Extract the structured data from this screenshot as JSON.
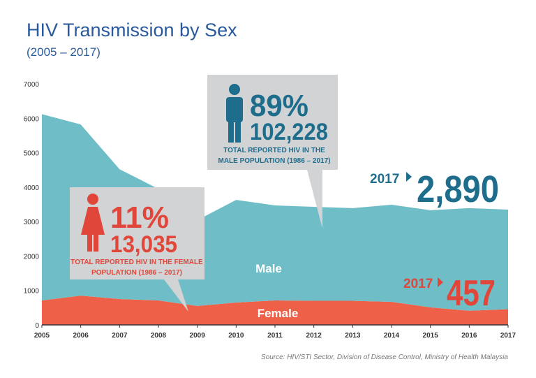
{
  "chart_data": {
    "type": "stacked-area",
    "title": "HIV Transmission by Sex",
    "subtitle": "(2005 – 2017)",
    "x": [
      2005,
      2006,
      2007,
      2008,
      2009,
      2010,
      2011,
      2012,
      2013,
      2014,
      2015,
      2016,
      2017
    ],
    "xlim": [
      2005,
      2017
    ],
    "xticks": [
      2005,
      2006,
      2007,
      2008,
      2009,
      2010,
      2011,
      2012,
      2013,
      2014,
      2015,
      2016,
      2017
    ],
    "ylim": [
      0,
      7000
    ],
    "yticks": [
      0,
      1000,
      2000,
      3000,
      4000,
      5000,
      6000,
      7000
    ],
    "series": [
      {
        "name": "Female",
        "color": "#ee6148",
        "values": [
          710,
          850,
          750,
          710,
          550,
          650,
          710,
          700,
          700,
          670,
          510,
          410,
          457
        ]
      },
      {
        "name": "Male",
        "color": "#6fbdc6",
        "values": [
          5410,
          4970,
          3770,
          3240,
          2490,
          2980,
          2760,
          2730,
          2690,
          2820,
          2820,
          2980,
          2890
        ]
      }
    ],
    "male_callout": {
      "percent": "89%",
      "total": "102,228",
      "caption": [
        "TOTAL REPORTED HIV IN THE",
        "MALE POPULATION (1986 – 2017)"
      ]
    },
    "female_callout": {
      "percent": "11%",
      "total": "13,035",
      "caption": [
        "TOTAL REPORTED HIV IN THE FEMALE",
        "POPULATION (1986 – 2017)"
      ]
    },
    "end_labels": [
      {
        "year": "2017",
        "label": "2,890"
      },
      {
        "year": "2017",
        "label": "457"
      }
    ],
    "source": "Source: HIV/STI Sector, Division of Disease Control, Ministry of Health Malaysia"
  }
}
